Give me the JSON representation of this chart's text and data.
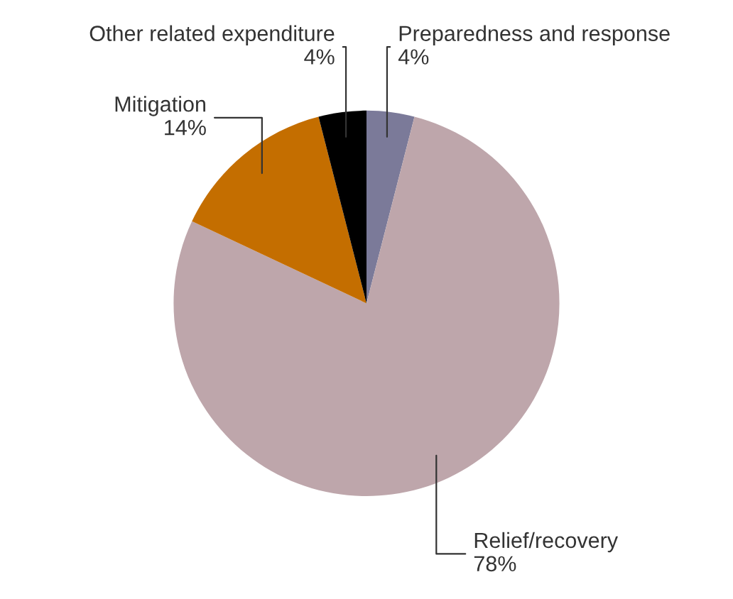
{
  "chart_data": {
    "type": "pie",
    "categories": [
      "Preparedness and response",
      "Relief/recovery",
      "Mitigation",
      "Other related expenditure"
    ],
    "values": [
      4,
      78,
      14,
      4
    ],
    "colors": [
      "#7b7a99",
      "#bea6ab",
      "#c46e00",
      "#000000"
    ],
    "value_labels": [
      "4%",
      "78%",
      "14%",
      "4%"
    ],
    "legend": false
  }
}
